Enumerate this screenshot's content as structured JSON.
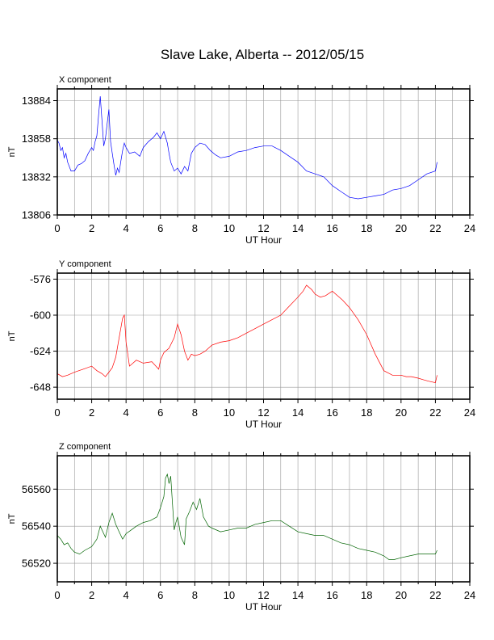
{
  "page": {
    "title": "Slave Lake, Alberta -- 2012/05/15"
  },
  "chart_data": [
    {
      "type": "line",
      "title": "X component",
      "xlabel": "UT Hour",
      "ylabel": "nT",
      "xlim": [
        0,
        24
      ],
      "ylim": [
        13806,
        13892
      ],
      "xticks": [
        0,
        2,
        4,
        6,
        8,
        10,
        12,
        14,
        16,
        18,
        20,
        22,
        24
      ],
      "yticks": [
        13806,
        13832,
        13858,
        13884
      ],
      "grid": true,
      "color": "#0000ff",
      "series": [
        {
          "x": [
            0,
            0.1,
            0.2,
            0.3,
            0.4,
            0.5,
            0.6,
            0.8,
            1.0,
            1.2,
            1.4,
            1.6,
            1.8,
            2.0,
            2.1,
            2.2,
            2.3,
            2.4,
            2.5,
            2.6,
            2.7,
            2.8,
            2.9,
            3.0,
            3.1,
            3.2,
            3.3,
            3.4,
            3.5,
            3.6,
            3.7,
            3.8,
            3.9,
            4.0,
            4.2,
            4.5,
            4.8,
            5.0,
            5.3,
            5.6,
            5.8,
            6.0,
            6.2,
            6.4,
            6.5,
            6.6,
            6.8,
            7.0,
            7.2,
            7.4,
            7.6,
            7.8,
            8.0,
            8.3,
            8.6,
            8.9,
            9.2,
            9.5,
            10.0,
            10.5,
            11.0,
            11.5,
            12.0,
            12.5,
            13.0,
            13.5,
            14.0,
            14.5,
            15.0,
            15.5,
            16.0,
            16.5,
            17.0,
            17.5,
            18.0,
            18.5,
            19.0,
            19.5,
            20.0,
            20.5,
            21.0,
            21.5,
            22.0,
            22.1
          ],
          "y": [
            13857,
            13855,
            13850,
            13852,
            13845,
            13848,
            13842,
            13836,
            13836,
            13840,
            13841,
            13843,
            13848,
            13852,
            13850,
            13856,
            13860,
            13874,
            13887,
            13870,
            13853,
            13858,
            13868,
            13878,
            13856,
            13848,
            13840,
            13833,
            13838,
            13835,
            13843,
            13850,
            13855,
            13852,
            13848,
            13849,
            13846,
            13852,
            13856,
            13859,
            13862,
            13858,
            13863,
            13855,
            13848,
            13842,
            13836,
            13838,
            13834,
            13839,
            13836,
            13848,
            13852,
            13855,
            13854,
            13850,
            13847,
            13845,
            13846,
            13849,
            13850,
            13852,
            13853,
            13853,
            13850,
            13846,
            13842,
            13836,
            13834,
            13832,
            13826,
            13822,
            13818,
            13817,
            13818,
            13819,
            13820,
            13823,
            13824,
            13826,
            13830,
            13834,
            13836,
            13842
          ]
        }
      ]
    },
    {
      "type": "line",
      "title": "Y component",
      "xlabel": "UT Hour",
      "ylabel": "nT",
      "xlim": [
        0,
        24
      ],
      "ylim": [
        -656,
        -572
      ],
      "xticks": [
        0,
        2,
        4,
        6,
        8,
        10,
        12,
        14,
        16,
        18,
        20,
        22,
        24
      ],
      "yticks": [
        -576,
        -600,
        -624,
        -648
      ],
      "grid": true,
      "color": "#ff0000",
      "series": [
        {
          "x": [
            0,
            0.3,
            0.6,
            1.0,
            1.5,
            2.0,
            2.3,
            2.6,
            2.8,
            3.0,
            3.2,
            3.4,
            3.6,
            3.8,
            3.9,
            4.0,
            4.2,
            4.4,
            4.6,
            5.0,
            5.5,
            5.9,
            6.0,
            6.2,
            6.5,
            6.8,
            7.0,
            7.2,
            7.4,
            7.6,
            7.8,
            8.0,
            8.3,
            8.6,
            9.0,
            9.5,
            10.0,
            10.5,
            11.0,
            11.5,
            12.0,
            12.5,
            13.0,
            13.5,
            14.0,
            14.3,
            14.5,
            14.8,
            15.0,
            15.3,
            15.6,
            16.0,
            16.3,
            16.6,
            17.0,
            17.5,
            18.0,
            18.5,
            19.0,
            19.5,
            20.0,
            20.3,
            20.6,
            21.0,
            21.3,
            21.6,
            22.0,
            22.1
          ],
          "y": [
            -639,
            -641,
            -640,
            -638,
            -636,
            -634,
            -637,
            -639,
            -641,
            -638,
            -635,
            -628,
            -615,
            -602,
            -600,
            -618,
            -634,
            -632,
            -630,
            -632,
            -631,
            -636,
            -630,
            -625,
            -622,
            -615,
            -606,
            -613,
            -624,
            -630,
            -626,
            -627,
            -626,
            -624,
            -620,
            -618,
            -617,
            -615,
            -612,
            -609,
            -606,
            -603,
            -600,
            -594,
            -588,
            -584,
            -580,
            -583,
            -586,
            -588,
            -587,
            -584,
            -587,
            -590,
            -595,
            -603,
            -613,
            -626,
            -637,
            -640,
            -640,
            -641,
            -641,
            -642,
            -643,
            -644,
            -645,
            -640
          ]
        }
      ]
    },
    {
      "type": "line",
      "title": "Z component",
      "xlabel": "UT Hour",
      "ylabel": "nT",
      "xlim": [
        0,
        24
      ],
      "ylim": [
        56510,
        56578
      ],
      "xticks": [
        0,
        2,
        4,
        6,
        8,
        10,
        12,
        14,
        16,
        18,
        20,
        22,
        24
      ],
      "yticks": [
        56520,
        56540,
        56560
      ],
      "grid": true,
      "color": "#006400",
      "series": [
        {
          "x": [
            0,
            0.2,
            0.4,
            0.6,
            0.8,
            1.0,
            1.3,
            1.6,
            2.0,
            2.3,
            2.5,
            2.8,
            3.0,
            3.2,
            3.4,
            3.6,
            3.8,
            4.0,
            4.3,
            4.6,
            5.0,
            5.4,
            5.8,
            6.0,
            6.2,
            6.3,
            6.4,
            6.5,
            6.6,
            6.7,
            6.8,
            6.9,
            7.0,
            7.2,
            7.4,
            7.5,
            7.7,
            7.9,
            8.1,
            8.3,
            8.5,
            8.8,
            9.0,
            9.5,
            10.0,
            10.5,
            11.0,
            11.5,
            12.0,
            12.5,
            13.0,
            13.5,
            14.0,
            14.5,
            15.0,
            15.5,
            16.0,
            16.5,
            17.0,
            17.5,
            18.0,
            18.5,
            19.0,
            19.3,
            19.6,
            20.0,
            20.5,
            21.0,
            21.5,
            22.0,
            22.1
          ],
          "y": [
            56535,
            56533,
            56530,
            56531,
            56528,
            56526,
            56525,
            56527,
            56529,
            56533,
            56540,
            56534,
            56542,
            56547,
            56541,
            56537,
            56533,
            56536,
            56538,
            56540,
            56542,
            56543,
            56545,
            56550,
            56556,
            56566,
            56568,
            56563,
            56567,
            56552,
            56538,
            56542,
            56545,
            56534,
            56530,
            56544,
            56548,
            56553,
            56549,
            56555,
            56545,
            56540,
            56539,
            56537,
            56538,
            56539,
            56539,
            56541,
            56542,
            56543,
            56543,
            56540,
            56537,
            56536,
            56535,
            56535,
            56533,
            56531,
            56530,
            56528,
            56527,
            56526,
            56524,
            56522,
            56522,
            56523,
            56524,
            56525,
            56525,
            56525,
            56527
          ]
        }
      ]
    }
  ]
}
